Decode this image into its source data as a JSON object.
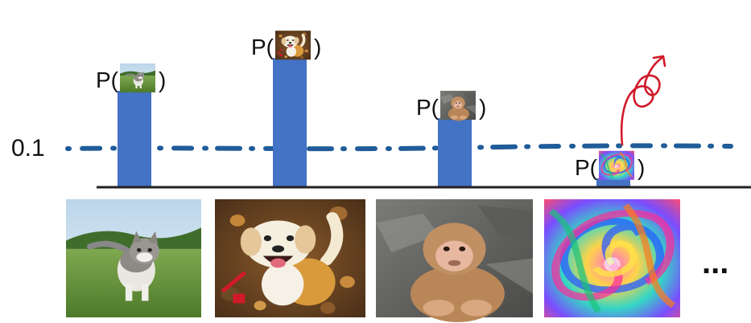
{
  "threshold": {
    "label": "0.1",
    "value": 0.1
  },
  "bars": [
    {
      "label_prefix": "P(",
      "label_suffix": ")",
      "subject": "kitten",
      "value": 0.35
    },
    {
      "label_prefix": "P(",
      "label_suffix": ")",
      "subject": "dog",
      "value": 0.47
    },
    {
      "label_prefix": "P(",
      "label_suffix": ")",
      "subject": "monkey",
      "value": 0.25
    },
    {
      "label_prefix": "P(",
      "label_suffix": ")",
      "subject": "psychedelic swirl",
      "value": 0.03
    }
  ],
  "images": [
    {
      "subject": "kitten"
    },
    {
      "subject": "dog"
    },
    {
      "subject": "monkey"
    },
    {
      "subject": "psychedelic swirl"
    }
  ],
  "ellipsis": "...",
  "colors": {
    "bar": "#4472c4",
    "threshold_line": "#1f5c99",
    "arrow": "#d11a2a",
    "axis": "#222222"
  }
}
